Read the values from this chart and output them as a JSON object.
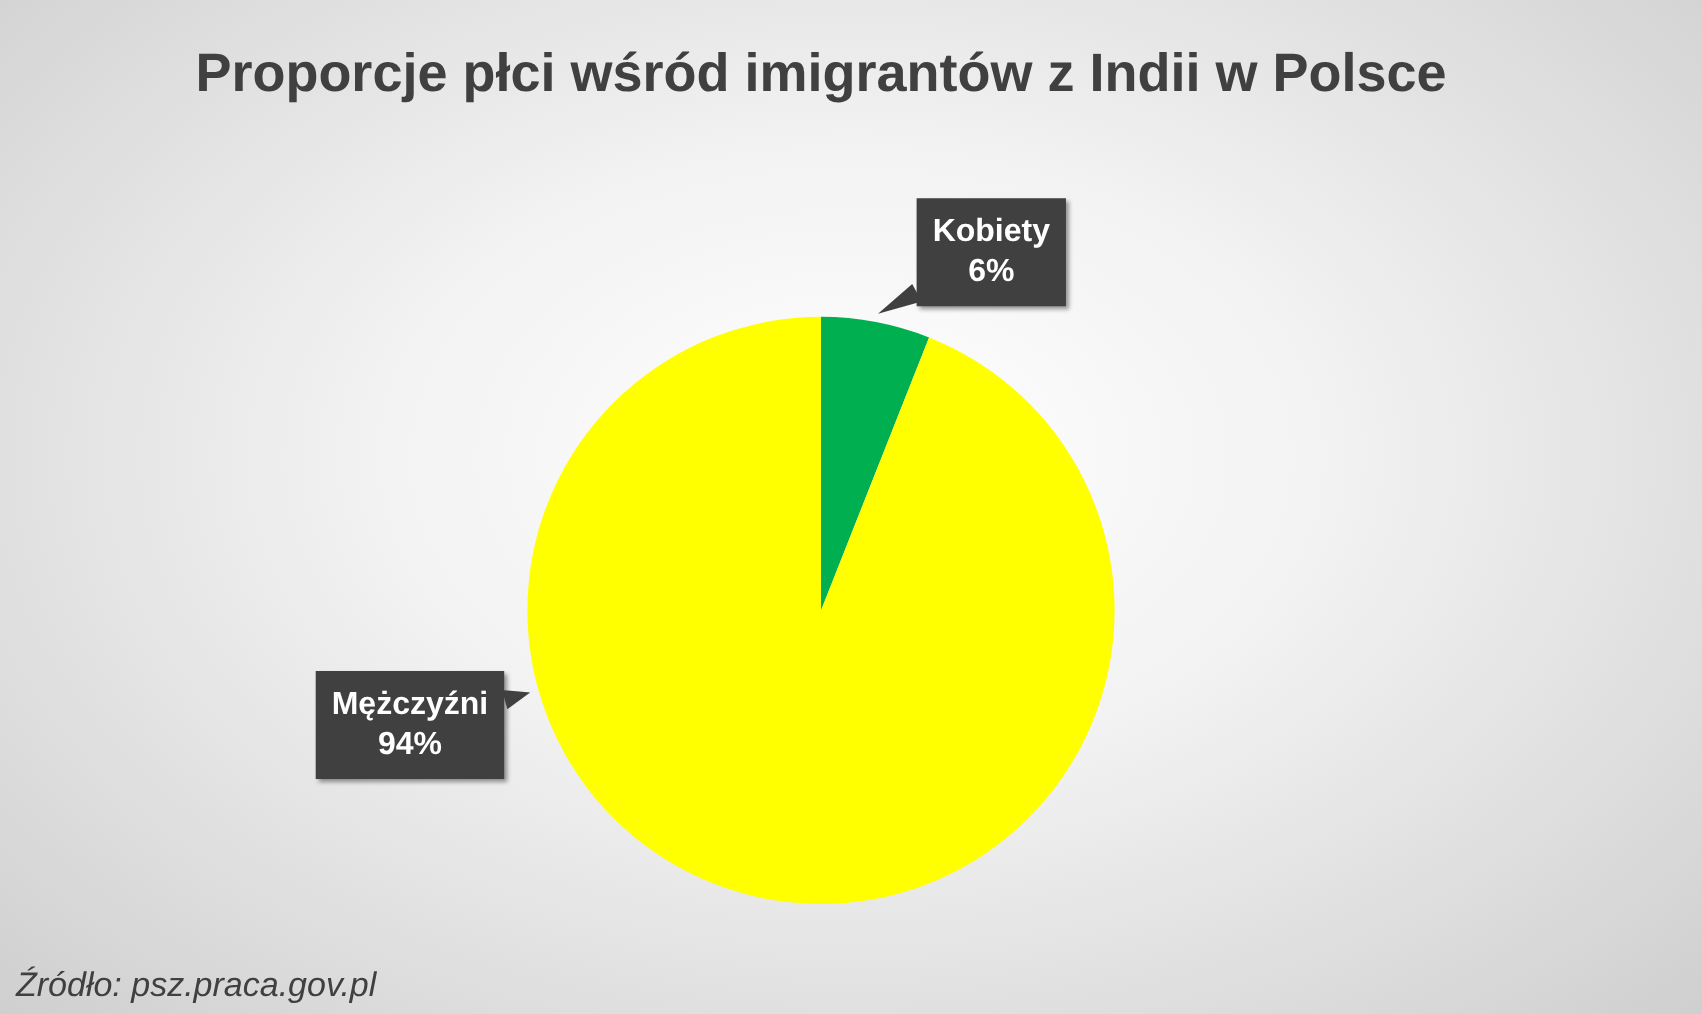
{
  "chart_data": {
    "type": "pie",
    "title": "Proporcje płci wśród imigrantów z Indii w Polsce",
    "categories": [
      "Kobiety",
      "Mężczyźni"
    ],
    "values": [
      6,
      94
    ],
    "value_labels": [
      "6%",
      "94%"
    ],
    "colors": [
      "#00b050",
      "#ffff00"
    ],
    "legend": false,
    "annotations": [
      "Źródło: psz.praca.gov.pl"
    ]
  }
}
